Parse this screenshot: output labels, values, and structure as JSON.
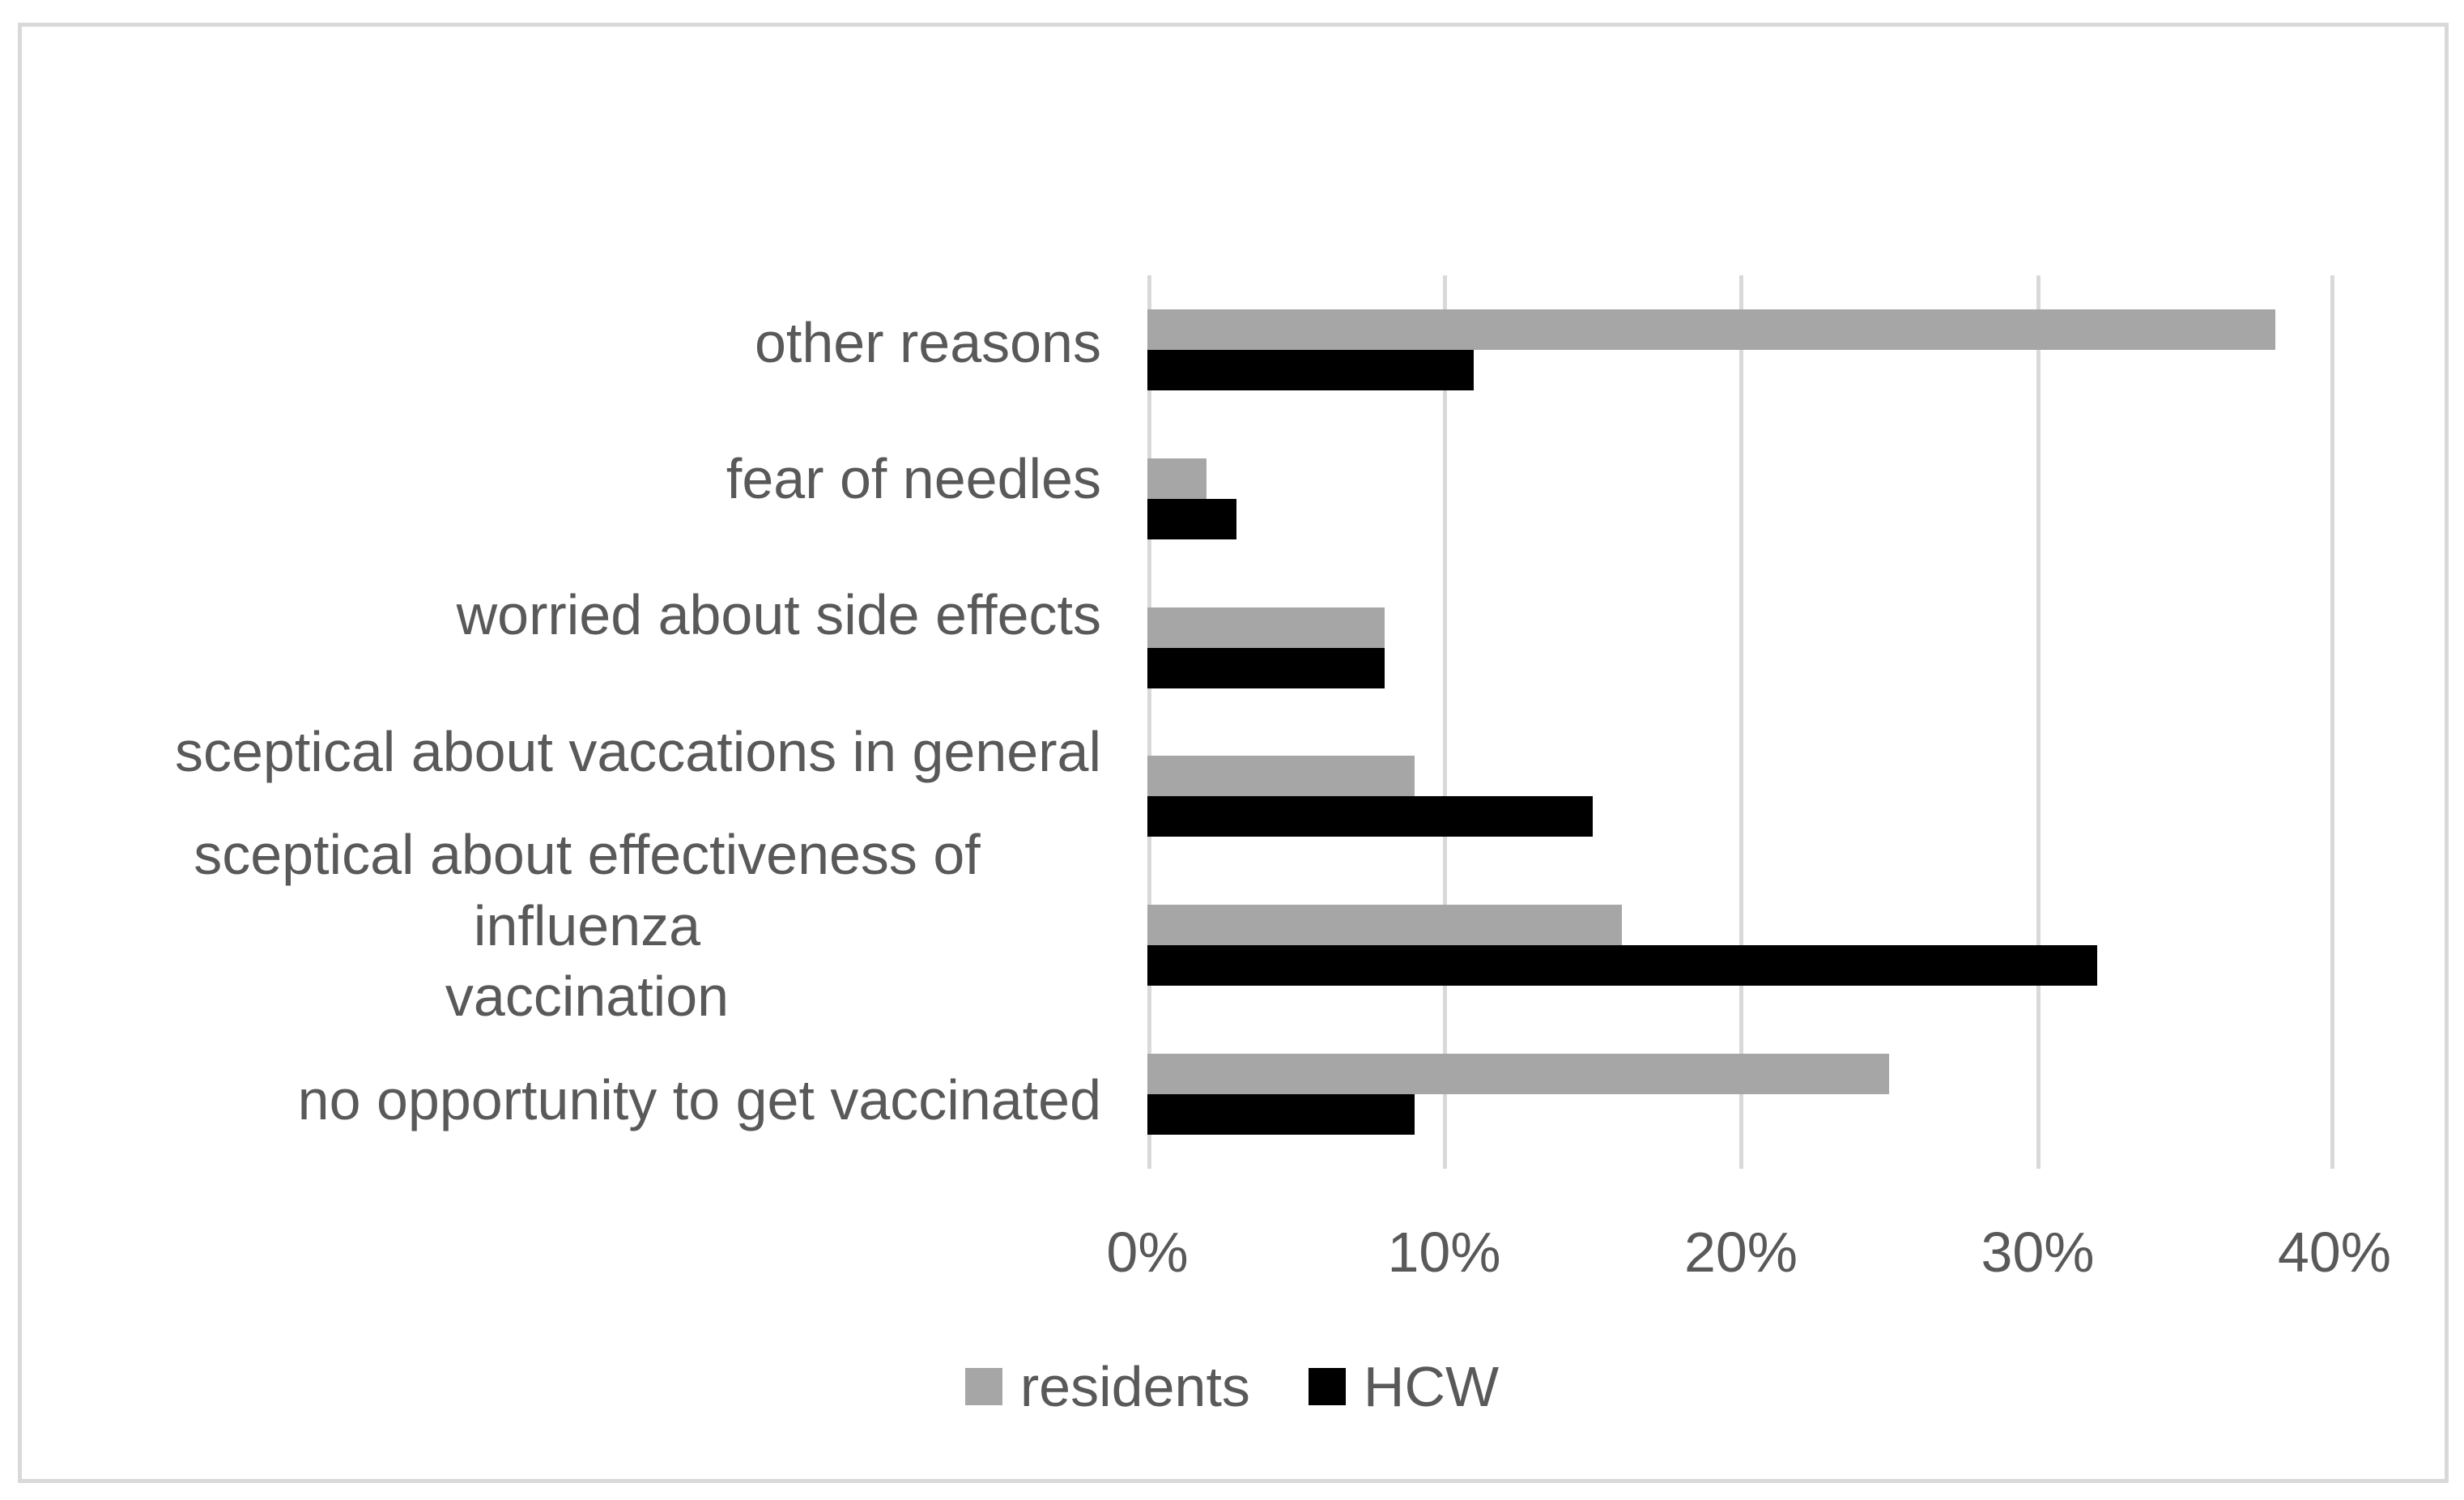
{
  "chart_data": {
    "type": "bar",
    "orientation": "horizontal",
    "title": "",
    "xlabel": "",
    "ylabel": "",
    "xlim": [
      0,
      40
    ],
    "tick_labels": [
      "0%",
      "10%",
      "20%",
      "30%",
      "40%"
    ],
    "grid": true,
    "legend_position": "bottom",
    "categories": [
      "other reasons",
      "fear of needles",
      "worried about side effects",
      "sceptical  about vaccations in general",
      "sceptical about effectiveness of influenza\nvaccination",
      "no opportunity to get vaccinated"
    ],
    "series": [
      {
        "name": "residents",
        "color": "#a6a6a6",
        "values": [
          38,
          2,
          8,
          9,
          16,
          25
        ]
      },
      {
        "name": "HCW",
        "color": "#000000",
        "values": [
          11,
          3,
          8,
          15,
          32,
          9
        ]
      }
    ]
  },
  "colors": {
    "background": "#ffffff",
    "frame_border": "#d9d9d9",
    "gridline": "#d9d9d9",
    "text": "#595959"
  }
}
